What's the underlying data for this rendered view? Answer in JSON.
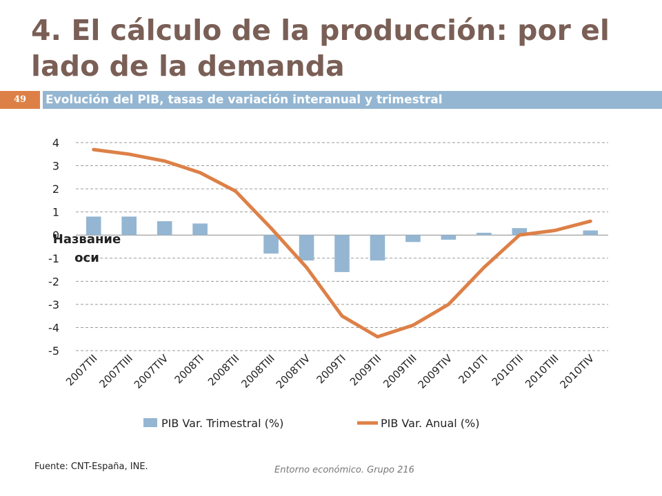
{
  "slide": {
    "title": "4. El cálculo de la producción: por el lado de la demanda",
    "number": "49",
    "subtitle": "Evolución del PIB, tasas de variación interanual y trimestral",
    "source": "Fuente: CNT-España, INE.",
    "footer": "Entorno económico. Grupo 216"
  },
  "chart_data": {
    "type": "bar",
    "categories": [
      "2007TII",
      "2007TIII",
      "2007TIV",
      "2008TI",
      "2008TII",
      "2008TIII",
      "2008TIV",
      "2009TI",
      "2009TII",
      "2009TIII",
      "2009TIV",
      "2010TI",
      "2010TII",
      "2010TIII",
      "2010TIV"
    ],
    "series": [
      {
        "name": "PIB Var. Trimestral (%)",
        "type": "bar",
        "color": "#94b6d2",
        "values": [
          0.8,
          0.8,
          0.6,
          0.5,
          0.0,
          -0.8,
          -1.1,
          -1.6,
          -1.1,
          -0.3,
          -0.2,
          0.1,
          0.3,
          0.0,
          0.2
        ]
      },
      {
        "name": "PIB Var. Anual (%)",
        "type": "line",
        "color": "#dd8047",
        "values": [
          3.7,
          3.5,
          3.2,
          2.7,
          1.9,
          0.3,
          -1.4,
          -3.5,
          -4.4,
          -3.9,
          -3.0,
          -1.4,
          0.0,
          0.2,
          0.6
        ]
      }
    ],
    "yticks": [
      "4",
      "3",
      "2",
      "1",
      "0",
      "-1",
      "-2",
      "-3",
      "-4",
      "-5"
    ],
    "ylim": [
      -5,
      4
    ],
    "ylabel": "Название оси",
    "ylabel_lines": [
      "Название",
      "оси"
    ],
    "grid": true,
    "legend_position": "bottom"
  }
}
